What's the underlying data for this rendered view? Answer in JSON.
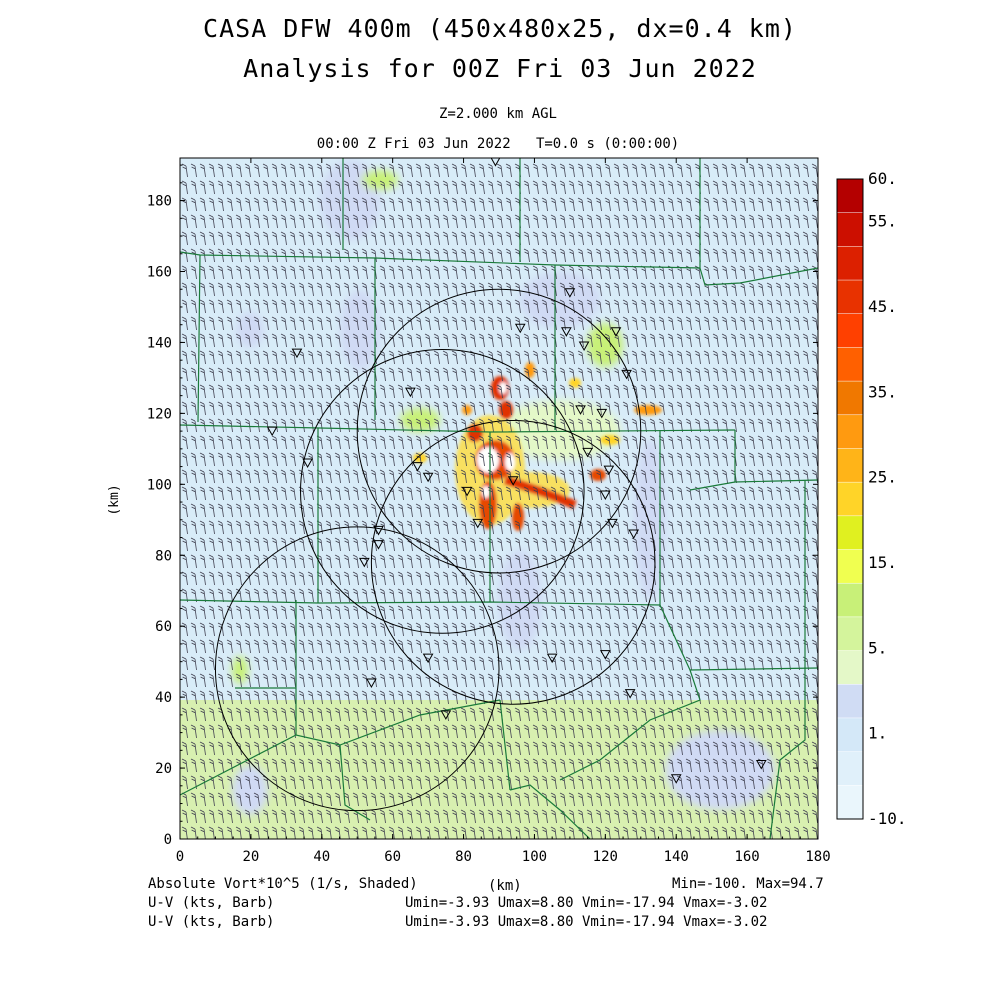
{
  "header": {
    "title_line1": "CASA DFW 400m (450x480x25, dx=0.4 km)",
    "title_line2": "Analysis for 00Z Fri 03 Jun 2022",
    "level": "Z=2.000 km AGL",
    "valid_time": "00:00 Z Fri 03 Jun 2022",
    "model_time": "T=0.0 s (0:00:00)"
  },
  "axes": {
    "x_label": "(km)",
    "y_label": "(km)",
    "x_range": [
      0,
      180
    ],
    "y_range": [
      0,
      192
    ],
    "x_ticks": [
      "0",
      "20",
      "40",
      "60",
      "80",
      "100",
      "120",
      "140",
      "160",
      "180"
    ],
    "y_ticks": [
      "0",
      "20",
      "40",
      "60",
      "80",
      "100",
      "120",
      "140",
      "160",
      "180"
    ]
  },
  "colorbar": {
    "labels": [
      "60.",
      "55.",
      "45.",
      "35.",
      "25.",
      "15.",
      "5.",
      "1.",
      "-10."
    ],
    "colors": [
      "#b40000",
      "#cc0f00",
      "#dc2000",
      "#e83200",
      "#ff4000",
      "#ff6000",
      "#f07800",
      "#ff9a10",
      "#ffb418",
      "#ffd428",
      "#e0f020",
      "#f0ff50",
      "#c8f078",
      "#d4f49c",
      "#e4f8c8",
      "#d0dcf4",
      "#d4e8f8",
      "#e0f0fa",
      "#eaf6fc"
    ]
  },
  "footer": {
    "field_label": "Absolute Vort*10^5 (1/s, Shaded)",
    "units_label": "(km)",
    "min_max": "Min=-100. Max=94.7",
    "vector1_label": "U-V (kts, Barb)",
    "vector1_stats": "Umin=-3.93 Umax=8.80 Vmin=-17.94 Vmax=-3.02",
    "vector2_label": "U-V (kts, Barb)",
    "vector2_stats": "Umin=-3.93 Umax=8.80 Vmin=-17.94 Vmax=-3.02"
  },
  "map": {
    "radar_ranges": [
      {
        "center_km": [
          90,
          115
        ],
        "radius_km": 40
      },
      {
        "center_km": [
          74,
          98
        ],
        "radius_km": 40
      },
      {
        "center_km": [
          94,
          78
        ],
        "radius_km": 40
      },
      {
        "center_km": [
          50,
          48
        ],
        "radius_km": 40
      }
    ],
    "station_markers_km": [
      [
        89,
        191
      ],
      [
        110,
        154
      ],
      [
        96,
        144
      ],
      [
        109,
        143
      ],
      [
        114,
        139
      ],
      [
        123,
        143
      ],
      [
        126,
        131
      ],
      [
        33,
        137
      ],
      [
        65,
        126
      ],
      [
        113,
        121
      ],
      [
        119,
        120
      ],
      [
        26,
        115
      ],
      [
        36,
        106
      ],
      [
        67,
        105
      ],
      [
        70,
        102
      ],
      [
        81,
        98
      ],
      [
        94,
        101
      ],
      [
        120,
        97
      ],
      [
        115,
        109
      ],
      [
        121,
        104
      ],
      [
        122,
        89
      ],
      [
        128,
        86
      ],
      [
        84,
        89
      ],
      [
        56,
        87
      ],
      [
        56,
        83
      ],
      [
        52,
        78
      ],
      [
        70,
        51
      ],
      [
        105,
        51
      ],
      [
        120,
        52
      ],
      [
        54,
        44
      ],
      [
        127,
        41
      ],
      [
        75,
        35
      ],
      [
        140,
        17
      ],
      [
        164,
        21
      ]
    ]
  }
}
